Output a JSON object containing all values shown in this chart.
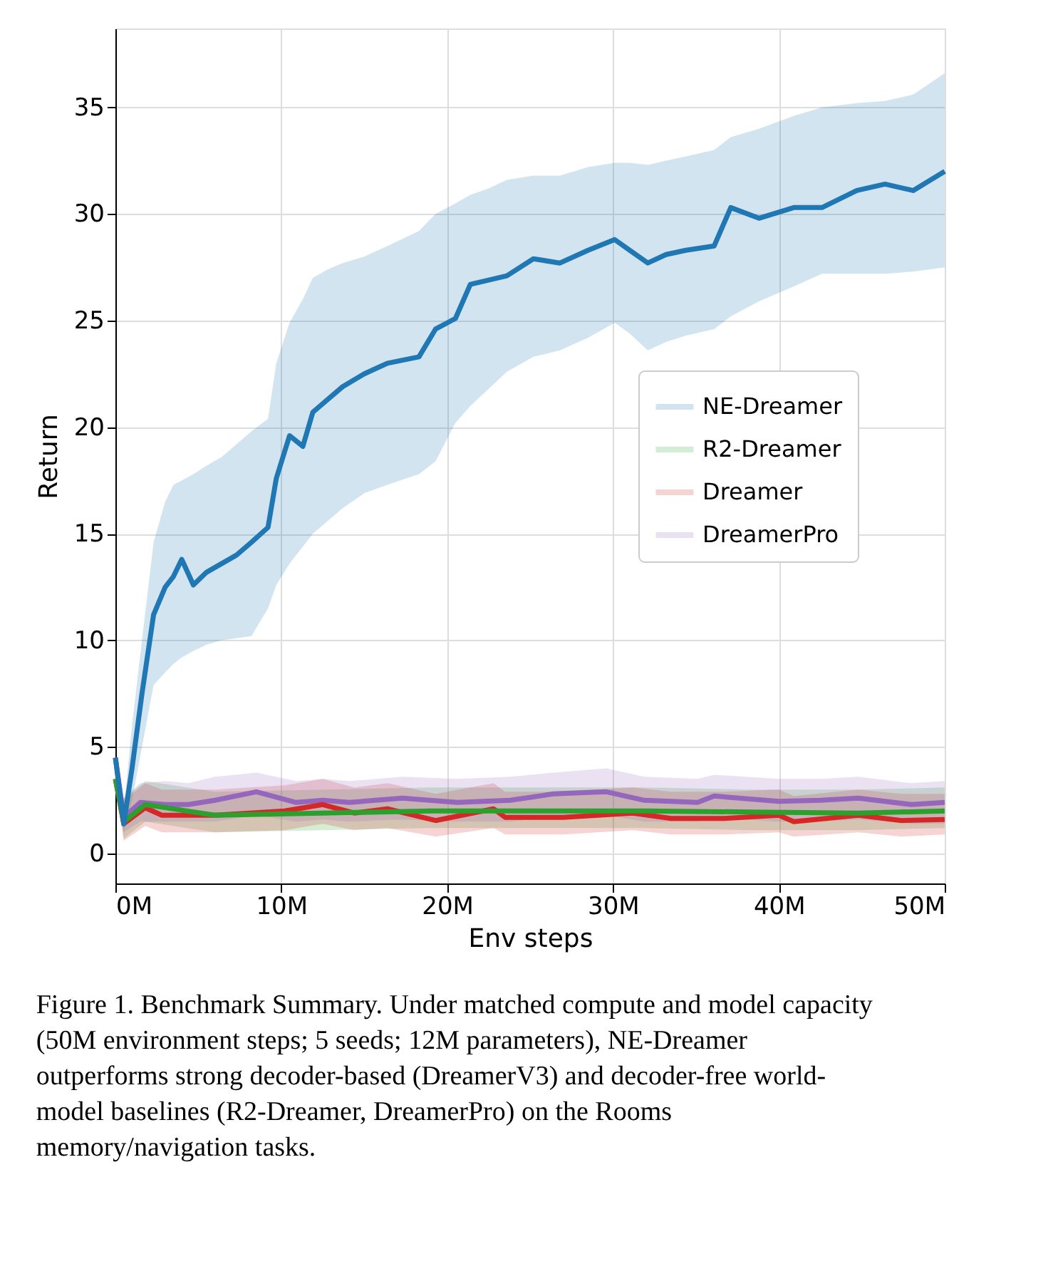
{
  "chart_data": {
    "type": "line",
    "xlabel": "Env steps",
    "ylabel": "Return",
    "xlim": [
      0,
      50
    ],
    "xticks": [
      {
        "value": 0,
        "label": "0M"
      },
      {
        "value": 10,
        "label": "10M"
      },
      {
        "value": 20,
        "label": "20M"
      },
      {
        "value": 30,
        "label": "30M"
      },
      {
        "value": 40,
        "label": "40M"
      },
      {
        "value": 50,
        "label": "50M"
      }
    ],
    "ylim": [
      -1.4,
      38.7
    ],
    "yticks": [
      0,
      5,
      10,
      15,
      20,
      25,
      30,
      35
    ],
    "grid": true,
    "legend": "right",
    "line_style": "solid",
    "marker": "none",
    "series": [
      {
        "name": "NE-Dreamer",
        "color": "#1f77b4",
        "x": [
          0,
          0.5,
          1,
          1.6,
          2.3,
          3,
          3.5,
          4,
          4.7,
          5.5,
          6.4,
          7.3,
          8.2,
          9.2,
          9.7,
          10.5,
          11.3,
          11.9,
          12.8,
          13.7,
          15,
          16.4,
          18.3,
          19.3,
          20.5,
          21.4,
          22.5,
          23.6,
          25.2,
          26.8,
          28.5,
          30.1,
          31,
          32.1,
          33.2,
          34.4,
          36.1,
          37.1,
          38.8,
          40.9,
          42.6,
          44.7,
          46.4,
          48.1,
          50
        ],
        "values": [
          4.5,
          1.4,
          4,
          7.5,
          11.2,
          12.5,
          13,
          13.8,
          12.6,
          13.2,
          13.6,
          14,
          14.6,
          15.3,
          17.6,
          19.6,
          19.1,
          20.7,
          21.3,
          21.9,
          22.5,
          23,
          23.3,
          24.6,
          25.1,
          26.7,
          26.9,
          27.1,
          27.9,
          27.7,
          28.3,
          28.8,
          28.3,
          27.7,
          28.1,
          28.3,
          28.5,
          30.3,
          29.8,
          30.3,
          30.3,
          31.1,
          31.4,
          31.1,
          32.0
        ],
        "upper": [
          4.5,
          2,
          6,
          10,
          14.6,
          16.5,
          17.3,
          17.5,
          17.8,
          18.2,
          18.6,
          19.2,
          19.8,
          20.4,
          23,
          24.9,
          26,
          27,
          27.4,
          27.7,
          28,
          28.5,
          29.2,
          30,
          30.5,
          30.9,
          31.2,
          31.6,
          31.8,
          31.8,
          32.2,
          32.4,
          32.4,
          32.3,
          32.5,
          32.7,
          33,
          33.6,
          34,
          34.6,
          35,
          35.2,
          35.3,
          35.6,
          36.6
        ],
        "lower": [
          4.5,
          1,
          2.5,
          5,
          7.9,
          8.5,
          8.9,
          9.2,
          9.5,
          9.8,
          10,
          10.1,
          10.2,
          11.5,
          12.6,
          13.6,
          14.4,
          15,
          15.6,
          16.2,
          16.9,
          17.3,
          17.8,
          18.4,
          20.2,
          21,
          21.8,
          22.6,
          23.3,
          23.6,
          24.2,
          24.9,
          24.4,
          23.6,
          24,
          24.3,
          24.6,
          25.2,
          25.9,
          26.6,
          27.2,
          27.2,
          27.2,
          27.3,
          27.5
        ]
      },
      {
        "name": "R2-Dreamer",
        "color": "#2ca02c",
        "x": [
          0,
          0.5,
          1.8,
          6,
          12.5,
          19,
          25.4,
          31.9,
          38.3,
          44.8,
          50
        ],
        "values": [
          3.5,
          1.5,
          2.3,
          1.8,
          1.9,
          2.0,
          2.0,
          2.0,
          1.95,
          1.9,
          2.0
        ],
        "upper": [
          3.5,
          2.6,
          3.4,
          2.9,
          3.0,
          3.1,
          3.1,
          3.1,
          3.0,
          3.0,
          3.1
        ],
        "lower": [
          3.5,
          0.7,
          1.5,
          1.0,
          1.1,
          1.2,
          1.2,
          1.2,
          1.1,
          1.1,
          1.2
        ]
      },
      {
        "name": "Dreamer",
        "color": "#d62728",
        "x": [
          0,
          0.5,
          1.8,
          2.8,
          6,
          10.2,
          12.5,
          14.4,
          16.4,
          19.3,
          22.8,
          23.5,
          27,
          31.2,
          33.5,
          36.7,
          40,
          40.9,
          44.8,
          47.4,
          50
        ],
        "values": [
          3.5,
          1.4,
          2.15,
          1.8,
          1.8,
          2.0,
          2.3,
          1.9,
          2.1,
          1.55,
          2.1,
          1.7,
          1.7,
          1.9,
          1.65,
          1.65,
          1.8,
          1.5,
          1.8,
          1.55,
          1.6
        ],
        "upper": [
          3.5,
          2.5,
          3.3,
          3.0,
          3.0,
          3.2,
          3.5,
          3.1,
          3.3,
          2.8,
          3.3,
          2.9,
          2.9,
          3.1,
          2.9,
          2.9,
          3.0,
          2.7,
          3.0,
          2.8,
          2.8
        ],
        "lower": [
          3.5,
          0.6,
          1.3,
          1.0,
          1.0,
          1.1,
          1.4,
          1.1,
          1.2,
          0.8,
          1.2,
          0.9,
          0.9,
          1.1,
          0.9,
          0.9,
          1.0,
          0.8,
          1.0,
          0.8,
          0.9
        ]
      },
      {
        "name": "DreamerPro",
        "color": "#9467bd",
        "x": [
          0,
          0.5,
          1.5,
          3,
          4.4,
          6,
          8.5,
          10.9,
          12.5,
          14.1,
          17.3,
          20.6,
          23.8,
          26.4,
          29.6,
          31.9,
          35.1,
          36.1,
          40,
          42.5,
          44.8,
          48,
          50
        ],
        "values": [
          4.5,
          1.7,
          2.4,
          2.3,
          2.3,
          2.5,
          2.9,
          2.4,
          2.5,
          2.4,
          2.6,
          2.4,
          2.5,
          2.8,
          2.9,
          2.5,
          2.4,
          2.7,
          2.45,
          2.5,
          2.6,
          2.3,
          2.4
        ],
        "upper": [
          4.5,
          2.6,
          3.3,
          3.4,
          3.3,
          3.6,
          3.8,
          3.4,
          3.5,
          3.4,
          3.6,
          3.5,
          3.6,
          3.8,
          4.0,
          3.6,
          3.5,
          3.7,
          3.5,
          3.5,
          3.6,
          3.3,
          3.4
        ],
        "lower": [
          4.5,
          1,
          1.5,
          1.5,
          1.5,
          1.5,
          1.8,
          1.5,
          1.6,
          1.5,
          1.6,
          1.5,
          1.5,
          1.7,
          1.8,
          1.5,
          1.5,
          1.7,
          1.5,
          1.5,
          1.6,
          1.4,
          1.4
        ]
      }
    ],
    "annotations": [
      "Figure 1. Benchmark Summary. Under matched compute and model capacity (50M environment steps; 5 seeds; 12M parameters), NE-Dreamer outperforms strong decoder-based (DreamerV3) and decoder-free world-model baselines (R2-Dreamer, DreamerPro) on the Rooms memory/navigation tasks."
    ]
  }
}
